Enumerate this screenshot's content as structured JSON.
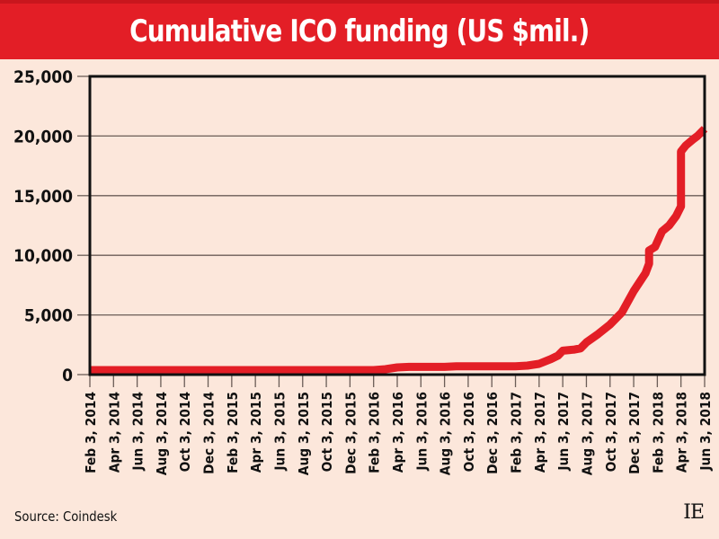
{
  "chart_data": {
    "type": "line",
    "title": "Cumulative ICO funding (US $mil.)",
    "xlabel": "",
    "ylabel": "",
    "ylim": [
      0,
      25000
    ],
    "yticks": [
      0,
      5000,
      10000,
      15000,
      20000,
      25000
    ],
    "ytick_labels": [
      "0",
      "5,000",
      "10,000",
      "15,000",
      "20,000",
      "25,000"
    ],
    "xtick_labels": [
      "Feb 3, 2014",
      "Apr 3, 2014",
      "Jun 3, 2014",
      "Aug 3, 2014",
      "Oct 3, 2014",
      "Dec 3, 2014",
      "Feb 3, 2015",
      "Apr 3, 2015",
      "Jun 3, 2015",
      "Aug 3, 2015",
      "Oct 3, 2015",
      "Dec 3, 2015",
      "Feb 3, 2016",
      "Apr 3, 2016",
      "Jun 3, 2016",
      "Aug 3, 2016",
      "Oct 3, 2016",
      "Dec 3, 2016",
      "Feb 3, 2017",
      "Apr 3, 2017",
      "Jun 3, 2017",
      "Aug 3, 2017",
      "Oct 3, 2017",
      "Dec 3, 2017",
      "Feb 3, 2018",
      "Apr 3, 2018",
      "Jun 3, 2018"
    ],
    "x_unit": "months since Feb 3, 2014",
    "xlim": [
      0,
      52
    ],
    "grid": "horizontal",
    "legend": "none",
    "series": [
      {
        "name": "Cumulative ICO funding",
        "color": "#e31e26",
        "x": [
          0,
          24,
          25,
          26,
          27,
          30,
          31,
          34,
          36,
          37,
          38,
          39,
          39.6,
          40,
          41,
          41.5,
          42,
          43,
          44,
          45,
          46,
          47,
          47.3,
          47.3,
          47.8,
          48.4,
          49,
          49.6,
          50,
          50,
          50.4,
          51,
          51.4,
          52
        ],
        "values": [
          350,
          350,
          450,
          600,
          650,
          650,
          700,
          700,
          700,
          750,
          900,
          1300,
          1600,
          2000,
          2100,
          2200,
          2700,
          3400,
          4200,
          5200,
          7000,
          8500,
          9300,
          10400,
          10700,
          12000,
          12500,
          13300,
          14100,
          18700,
          19200,
          19700,
          20000,
          20600
        ]
      }
    ]
  },
  "footer": {
    "source": "Source: Coindesk",
    "logo": "IE"
  },
  "colors": {
    "background": "#fce7db",
    "title_bar": "#e31e26",
    "line": "#e31e26",
    "axis": "#111111",
    "grid": "#6b5d57"
  }
}
